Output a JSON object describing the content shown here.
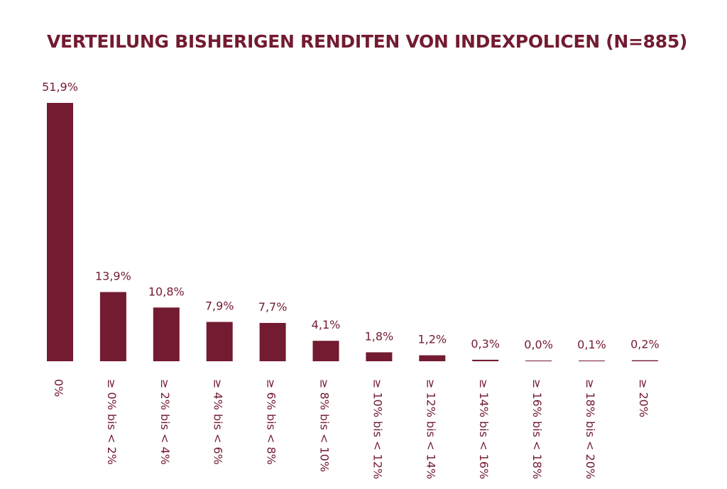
{
  "colors": {
    "bar": "#731b30",
    "title": "#731b30",
    "label": "#731b30",
    "background": "#ffffff"
  },
  "chart_data": {
    "type": "bar",
    "title": "VERTEILUNG BISHERIGEN RENDITEN VON INDEXPOLICEN (N=885)",
    "xlabel": "",
    "ylabel": "",
    "ylim": [
      0,
      51.9
    ],
    "grid": false,
    "legend": "none",
    "categories": [
      "0%",
      "≥ 0% bis < 2%",
      "≥ 2% bis < 4%",
      "≥ 4% bis < 6%",
      "≥ 6% bis < 8%",
      "≥ 8% bis < 10%",
      "≥ 10% bis < 12%",
      "≥ 12% bis < 14%",
      "≥ 14% bis < 16%",
      "≥ 16% bis < 18%",
      "≥ 18% bis < 20%",
      "≥ 20%"
    ],
    "values": [
      51.9,
      13.9,
      10.8,
      7.9,
      7.7,
      4.1,
      1.8,
      1.2,
      0.3,
      0.0,
      0.1,
      0.2
    ],
    "data_labels": [
      "51,9%",
      "13,9%",
      "10,8%",
      "7,9%",
      "7,7%",
      "4,1%",
      "1,8%",
      "1,2%",
      "0,3%",
      "0,0%",
      "0,1%",
      "0,2%"
    ]
  }
}
